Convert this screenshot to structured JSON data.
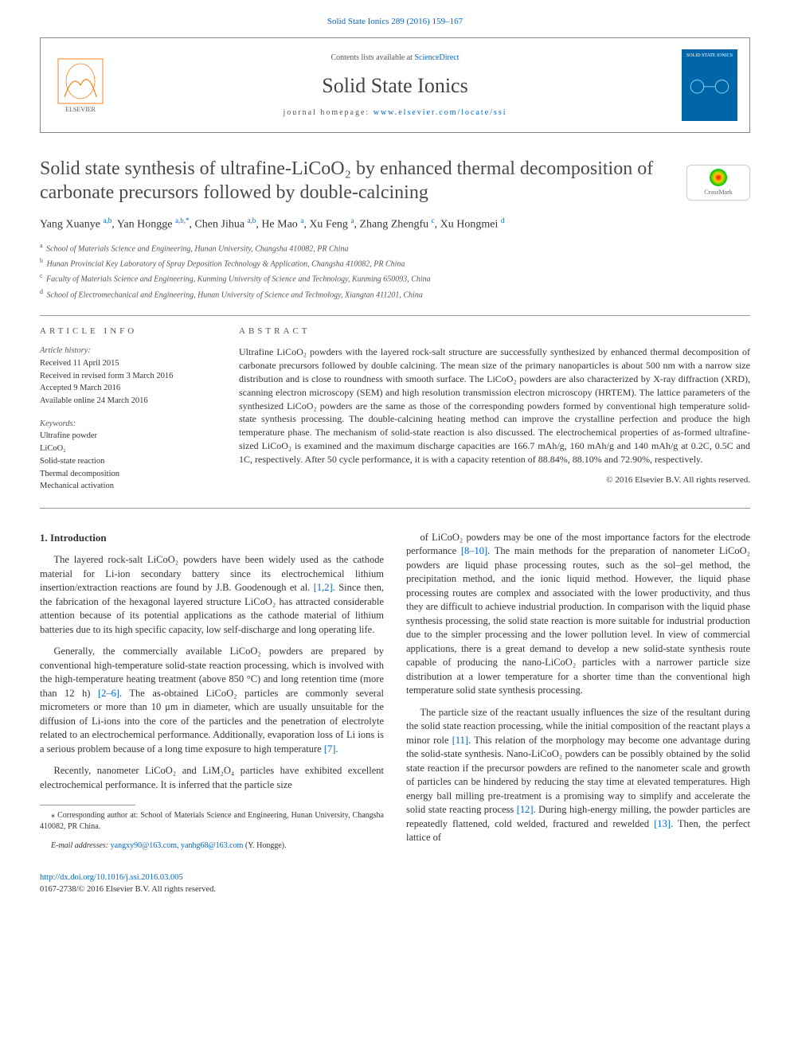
{
  "citation": {
    "text": "Solid State Ionics 289 (2016) 159–167",
    "link_color": "#0066cc"
  },
  "header": {
    "contents_prefix": "Contents lists available at ",
    "contents_link": "ScienceDirect",
    "journal_name": "Solid State Ionics",
    "homepage_prefix": "journal homepage: ",
    "homepage_url": "www.elsevier.com/locate/ssi",
    "cover_text": "SOLID STATE IONICS"
  },
  "title": "Solid state synthesis of ultrafine-LiCoO₂ by enhanced thermal decomposition of carbonate precursors followed by double-calcining",
  "crossmark_label": "CrossMark",
  "authors_html": "Yang Xuanye <sup><a>a,b</a></sup>, Yan Hongge <sup><a>a,b,</a></sup><sup><a>*</a></sup>, Chen Jihua <sup><a>a,b</a></sup>, He Mao <sup><a>a</a></sup>, Xu Feng <sup><a>a</a></sup>, Zhang Zhengfu <sup><a>c</a></sup>, Xu Hongmei <sup><a>d</a></sup>",
  "affiliations": [
    {
      "sup": "a",
      "text": "School of Materials Science and Engineering, Hunan University, Changsha 410082, PR China"
    },
    {
      "sup": "b",
      "text": "Hunan Provincial Key Laboratory of Spray Deposition Technology & Application, Changsha 410082, PR China"
    },
    {
      "sup": "c",
      "text": "Faculty of Materials Science and Engineering, Kunming University of Science and Technology, Kunming 650093, China"
    },
    {
      "sup": "d",
      "text": "School of Electromechanical and Engineering, Hunan University of Science and Technology, Xiangtan 411201, China"
    }
  ],
  "article_info": {
    "label": "article info",
    "history_label": "Article history:",
    "history": [
      "Received 11 April 2015",
      "Received in revised form 3 March 2016",
      "Accepted 9 March 2016",
      "Available online 24 March 2016"
    ],
    "keywords_label": "Keywords:",
    "keywords": [
      "Ultrafine powder",
      "LiCoO₂",
      "Solid-state reaction",
      "Thermal decomposition",
      "Mechanical activation"
    ]
  },
  "abstract": {
    "label": "abstract",
    "text": "Ultrafine LiCoO₂ powders with the layered rock-salt structure are successfully synthesized by enhanced thermal decomposition of carbonate precursors followed by double calcining. The mean size of the primary nanoparticles is about 500 nm with a narrow size distribution and is close to roundness with smooth surface. The LiCoO₂ powders are also characterized by X-ray diffraction (XRD), scanning electron microscopy (SEM) and high resolution transmission electron microscopy (HRTEM). The lattice parameters of the synthesized LiCoO₂ powders are the same as those of the corresponding powders formed by conventional high temperature solid-state synthesis processing. The double-calcining heating method can improve the crystalline perfection and produce the high temperature phase. The mechanism of solid-state reaction is also discussed. The electrochemical properties of as-formed ultrafine-sized LiCoO₂ is examined and the maximum discharge capacities are 166.7 mAh/g, 160 mAh/g and 140 mAh/g at 0.2C, 0.5C and 1C, respectively. After 50 cycle performance, it is with a capacity retention of 88.84%, 88.10% and 72.90%, respectively.",
    "copyright": "© 2016 Elsevier B.V. All rights reserved."
  },
  "body": {
    "section_heading": "1. Introduction",
    "p1_a": "The layered rock-salt LiCoO₂ powders have been widely used as the cathode material for Li-ion secondary battery since its electrochemical lithium insertion/extraction reactions are found by J.B. Goodenough et al. ",
    "p1_ref1": "[1,2]",
    "p1_b": ". Since then, the fabrication of the hexagonal layered structure LiCoO₂ has attracted considerable attention because of its potential applications as the cathode material of lithium batteries due to its high specific capacity, low self-discharge and long operating life.",
    "p2_a": "Generally, the commercially available LiCoO₂ powders are prepared by conventional high-temperature solid-state reaction processing, which is involved with the high-temperature heating treatment (above 850 °C) and long retention time (more than 12 h) ",
    "p2_ref1": "[2–6]",
    "p2_b": ". The as-obtained LiCoO₂ particles are commonly several micrometers or more than 10 μm in diameter, which are usually unsuitable for the diffusion of Li-ions into the core of the particles and the penetration of electrolyte related to an electrochemical performance. Additionally, evaporation loss of Li ions is a serious problem because of a long time exposure to high temperature ",
    "p2_ref2": "[7]",
    "p2_c": ".",
    "p3_a": "Recently, nanometer LiCoO₂ and LiM₂O₄ particles have exhibited excellent electrochemical performance. It is inferred that the particle size",
    "p3_b": "of LiCoO₂ powders may be one of the most importance factors for the electrode performance ",
    "p3_ref1": "[8–10]",
    "p3_c": ". The main methods for the preparation of nanometer LiCoO₂ powders are liquid phase processing routes, such as the sol–gel method, the precipitation method, and the ionic liquid method. However, the liquid phase processing routes are complex and associated with the lower productivity, and thus they are difficult to achieve industrial production. In comparison with the liquid phase synthesis processing, the solid state reaction is more suitable for industrial production due to the simpler processing and the lower pollution level. In view of commercial applications, there is a great demand to develop a new solid-state synthesis route capable of producing the nano-LiCoO₂ particles with a narrower particle size distribution at a lower temperature for a shorter time than the conventional high temperature solid state synthesis processing.",
    "p4_a": "The particle size of the reactant usually influences the size of the resultant during the solid state reaction processing, while the initial composition of the reactant plays a minor role ",
    "p4_ref1": "[11]",
    "p4_b": ". This relation of the morphology may become one advantage during the solid-state synthesis. Nano-LiCoO₂ powders can be possibly obtained by the solid state reaction if the precursor powders are refined to the nanometer scale and growth of particles can be hindered by reducing the stay time at elevated temperatures. High energy ball milling pre-treatment is a promising way to simplify and accelerate the solid state reacting process ",
    "p4_ref2": "[12]",
    "p4_c": ". During high-energy milling, the powder particles are repeatedly flattened, cold welded, fractured and rewelded ",
    "p4_ref3": "[13]",
    "p4_d": ". Then, the perfect lattice of"
  },
  "footnotes": {
    "corr_label": "⁎ Corresponding author at: School of Materials Science and Engineering, Hunan University, Changsha 410082, PR China.",
    "email_label": "E-mail addresses: ",
    "email1": "yangxy90@163.com",
    "email_sep": ", ",
    "email2": "yanhg68@163.com",
    "email_suffix": " (Y. Hongge)."
  },
  "footer": {
    "doi": "http://dx.doi.org/10.1016/j.ssi.2016.03.005",
    "issn_line": "0167-2738/© 2016 Elsevier B.V. All rights reserved."
  },
  "colors": {
    "link": "#0066cc",
    "text": "#333333",
    "muted": "#555555",
    "rule": "#999999",
    "cover_bg": "#0066aa"
  }
}
